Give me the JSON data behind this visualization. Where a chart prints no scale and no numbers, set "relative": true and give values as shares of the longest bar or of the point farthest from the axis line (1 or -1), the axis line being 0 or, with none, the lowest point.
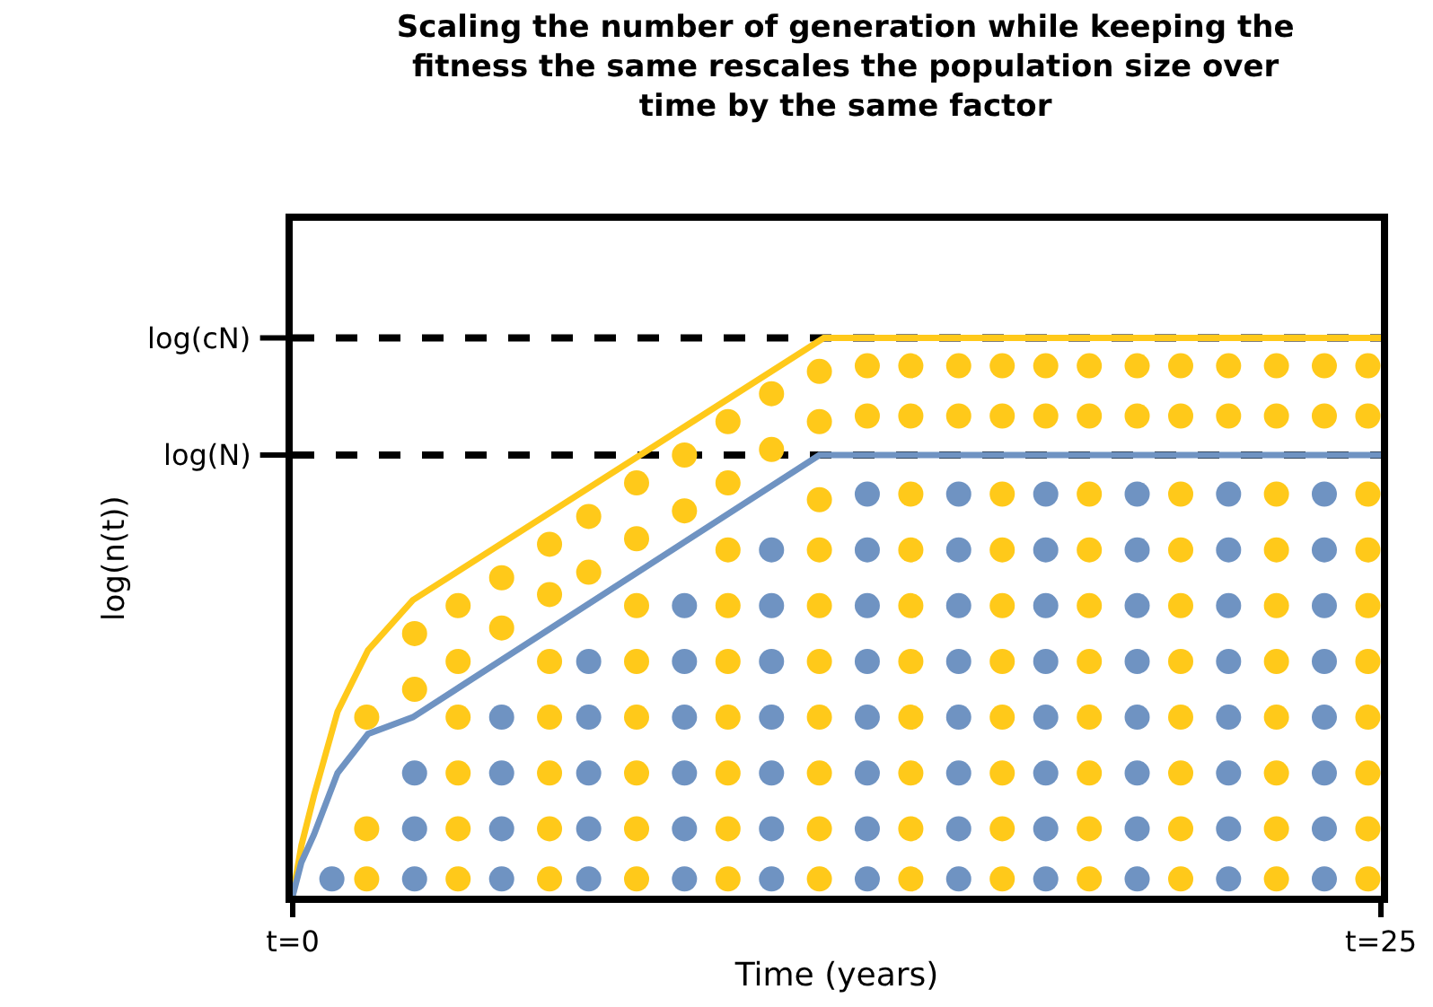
{
  "chart_data": {
    "type": "line",
    "title": "Scaling the number of generation while keeping the fitness the same rescales the population size over time by the same factor",
    "xlabel": "Time (years)",
    "ylabel": "log(n(t))",
    "xlim": [
      0,
      25
    ],
    "xticks": [
      {
        "value": 0,
        "label": "t=0"
      },
      {
        "value": 25,
        "label": "t=25"
      }
    ],
    "relative": true,
    "ref_lines": [
      {
        "axis": "y",
        "value": 1,
        "label": "log(cN)",
        "color": "#000000",
        "line_style": "dashed"
      },
      {
        "axis": "y",
        "value": 0.79,
        "label": "log(N)",
        "color": "#000000",
        "line_style": "dashed"
      }
    ],
    "series": [
      {
        "color": "#ffc91a",
        "marker": "none",
        "line_style": "solid",
        "x": [
          0,
          0.2,
          0.49,
          1.03,
          1.73,
          2.76,
          12.2,
          25
        ],
        "values": [
          0,
          0.09,
          0.18,
          0.33,
          0.44,
          0.53,
          1,
          1
        ]
      },
      {
        "color": "#6f93c2",
        "marker": "none",
        "line_style": "solid",
        "x": [
          0,
          0.2,
          0.49,
          1.03,
          1.73,
          2.76,
          12.1,
          25
        ],
        "values": [
          0,
          0.06,
          0.11,
          0.22,
          0.29,
          0.32,
          0.79,
          0.79
        ]
      },
      {
        "type": "scatter",
        "color": "#ffc91a",
        "marker": "circle",
        "x": [
          1.7,
          1.7,
          1.7,
          2.8,
          2.8,
          3.8,
          3.8,
          3.8,
          3.8,
          3.8,
          3.8,
          4.8,
          4.8,
          5.9,
          5.9,
          5.9,
          5.9,
          5.9,
          5.9,
          5.9,
          6.8,
          6.8,
          7.9,
          7.9,
          7.9,
          7.9,
          7.9,
          7.9,
          7.9,
          7.9,
          9.0,
          9.0,
          10.0,
          10.0,
          10.0,
          10.0,
          10.0,
          10.0,
          10.0,
          10.0,
          10.0,
          11.0,
          11.0,
          12.1,
          12.1,
          12.1,
          12.1,
          12.1,
          12.1,
          12.1,
          12.1,
          12.1,
          12.1,
          13.2,
          13.2,
          14.2,
          14.2,
          14.2,
          14.2,
          14.2,
          14.2,
          14.2,
          14.2,
          14.2,
          14.2,
          15.3,
          15.3,
          16.3,
          16.3,
          16.3,
          16.3,
          16.3,
          16.3,
          16.3,
          16.3,
          16.3,
          16.3,
          17.3,
          17.3,
          18.3,
          18.3,
          18.3,
          18.3,
          18.3,
          18.3,
          18.3,
          18.3,
          18.3,
          18.3,
          19.4,
          19.4,
          20.4,
          20.4,
          20.4,
          20.4,
          20.4,
          20.4,
          20.4,
          20.4,
          20.4,
          20.4,
          21.5,
          21.5,
          22.6,
          22.6,
          22.6,
          22.6,
          22.6,
          22.6,
          22.6,
          22.6,
          22.6,
          22.6,
          23.7,
          23.7,
          24.7,
          24.7,
          24.7,
          24.7,
          24.7,
          24.7,
          24.7,
          24.7,
          24.7,
          24.7
        ],
        "values": [
          0.03,
          0.12,
          0.32,
          0.37,
          0.47,
          0.03,
          0.12,
          0.22,
          0.32,
          0.42,
          0.52,
          0.48,
          0.57,
          0.03,
          0.12,
          0.22,
          0.32,
          0.42,
          0.54,
          0.63,
          0.58,
          0.68,
          0.03,
          0.12,
          0.22,
          0.32,
          0.42,
          0.52,
          0.64,
          0.74,
          0.69,
          0.79,
          0.03,
          0.12,
          0.22,
          0.32,
          0.42,
          0.52,
          0.62,
          0.74,
          0.85,
          0.8,
          0.9,
          0.03,
          0.12,
          0.22,
          0.32,
          0.42,
          0.52,
          0.62,
          0.71,
          0.85,
          0.94,
          0.86,
          0.95,
          0.03,
          0.12,
          0.22,
          0.32,
          0.42,
          0.52,
          0.62,
          0.72,
          0.86,
          0.95,
          0.86,
          0.95,
          0.03,
          0.12,
          0.22,
          0.32,
          0.42,
          0.52,
          0.62,
          0.72,
          0.86,
          0.95,
          0.86,
          0.95,
          0.03,
          0.12,
          0.22,
          0.32,
          0.42,
          0.52,
          0.62,
          0.72,
          0.86,
          0.95,
          0.86,
          0.95,
          0.03,
          0.12,
          0.22,
          0.32,
          0.42,
          0.52,
          0.62,
          0.72,
          0.86,
          0.95,
          0.86,
          0.95,
          0.03,
          0.12,
          0.22,
          0.32,
          0.42,
          0.52,
          0.62,
          0.72,
          0.86,
          0.95,
          0.86,
          0.95,
          0.03,
          0.12,
          0.22,
          0.32,
          0.42,
          0.52,
          0.62,
          0.72,
          0.86,
          0.95
        ]
      },
      {
        "type": "scatter",
        "color": "#6f93c2",
        "marker": "circle",
        "x": [
          0.9,
          2.8,
          2.8,
          2.8,
          4.8,
          4.8,
          4.8,
          4.8,
          6.8,
          6.8,
          6.8,
          6.8,
          6.8,
          9.0,
          9.0,
          9.0,
          9.0,
          9.0,
          9.0,
          11.0,
          11.0,
          11.0,
          11.0,
          11.0,
          11.0,
          11.0,
          13.2,
          13.2,
          13.2,
          13.2,
          13.2,
          13.2,
          13.2,
          13.2,
          15.3,
          15.3,
          15.3,
          15.3,
          15.3,
          15.3,
          15.3,
          15.3,
          17.3,
          17.3,
          17.3,
          17.3,
          17.3,
          17.3,
          17.3,
          17.3,
          19.4,
          19.4,
          19.4,
          19.4,
          19.4,
          19.4,
          19.4,
          19.4,
          21.5,
          21.5,
          21.5,
          21.5,
          21.5,
          21.5,
          21.5,
          21.5,
          23.7,
          23.7,
          23.7,
          23.7,
          23.7,
          23.7,
          23.7,
          23.7
        ],
        "values": [
          0.03,
          0.03,
          0.12,
          0.22,
          0.03,
          0.12,
          0.22,
          0.32,
          0.03,
          0.12,
          0.22,
          0.32,
          0.42,
          0.03,
          0.12,
          0.22,
          0.32,
          0.42,
          0.52,
          0.03,
          0.12,
          0.22,
          0.32,
          0.42,
          0.52,
          0.62,
          0.03,
          0.12,
          0.22,
          0.32,
          0.42,
          0.52,
          0.62,
          0.72,
          0.03,
          0.12,
          0.22,
          0.32,
          0.42,
          0.52,
          0.62,
          0.72,
          0.03,
          0.12,
          0.22,
          0.32,
          0.42,
          0.52,
          0.62,
          0.72,
          0.03,
          0.12,
          0.22,
          0.32,
          0.42,
          0.52,
          0.62,
          0.72,
          0.03,
          0.12,
          0.22,
          0.32,
          0.42,
          0.52,
          0.62,
          0.72,
          0.03,
          0.12,
          0.22,
          0.32,
          0.42,
          0.52,
          0.62,
          0.72
        ]
      }
    ]
  }
}
